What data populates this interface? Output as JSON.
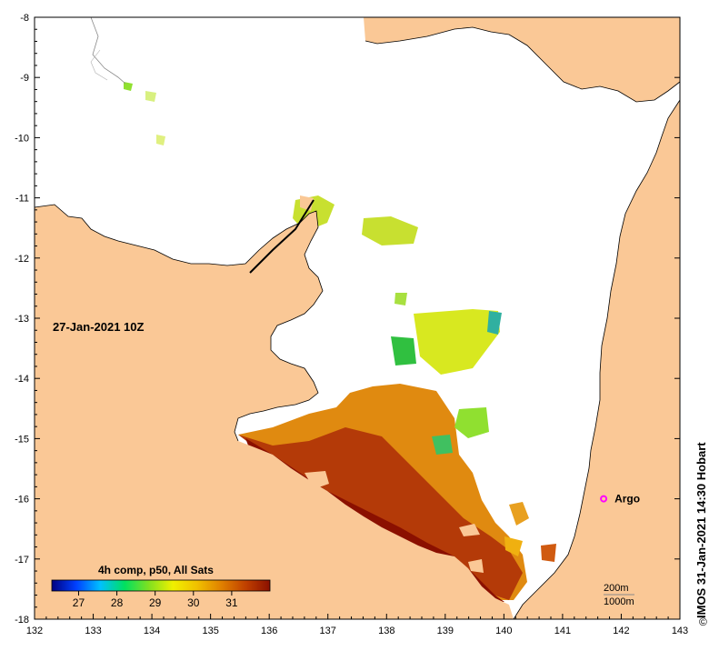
{
  "map": {
    "timestamp_label": "27-Jan-2021 10Z",
    "legend_title": "4h comp, p50, All Sats",
    "legend_ticks": [
      "27",
      "28",
      "29",
      "30",
      "31"
    ],
    "legend_range": [
      26.3,
      32.0
    ],
    "credit": "IMOS 31-Jan-2021 14:30 Hobart",
    "copyright_symbol": "©",
    "x_ticks": [
      "132",
      "133",
      "134",
      "135",
      "136",
      "137",
      "138",
      "139",
      "140",
      "141",
      "142",
      "143"
    ],
    "y_ticks": [
      "-8",
      "-9",
      "-10",
      "-11",
      "-12",
      "-13",
      "-14",
      "-15",
      "-16",
      "-17",
      "-18"
    ],
    "lon_range": [
      132,
      143
    ],
    "lat_range": [
      -18,
      -8
    ],
    "argo_label": "Argo",
    "argo_position": {
      "lon": 141.7,
      "lat": -16.0
    },
    "isobath_labels": [
      "200m",
      "1000m"
    ],
    "colors": {
      "land": "#fac896",
      "sea": "#ffffff",
      "argo": "#ff00ff",
      "colormap": [
        "#000080",
        "#0040ff",
        "#00c0ff",
        "#00e060",
        "#80e020",
        "#f0f000",
        "#f0c000",
        "#e08000",
        "#c04000",
        "#8b1000"
      ]
    }
  }
}
